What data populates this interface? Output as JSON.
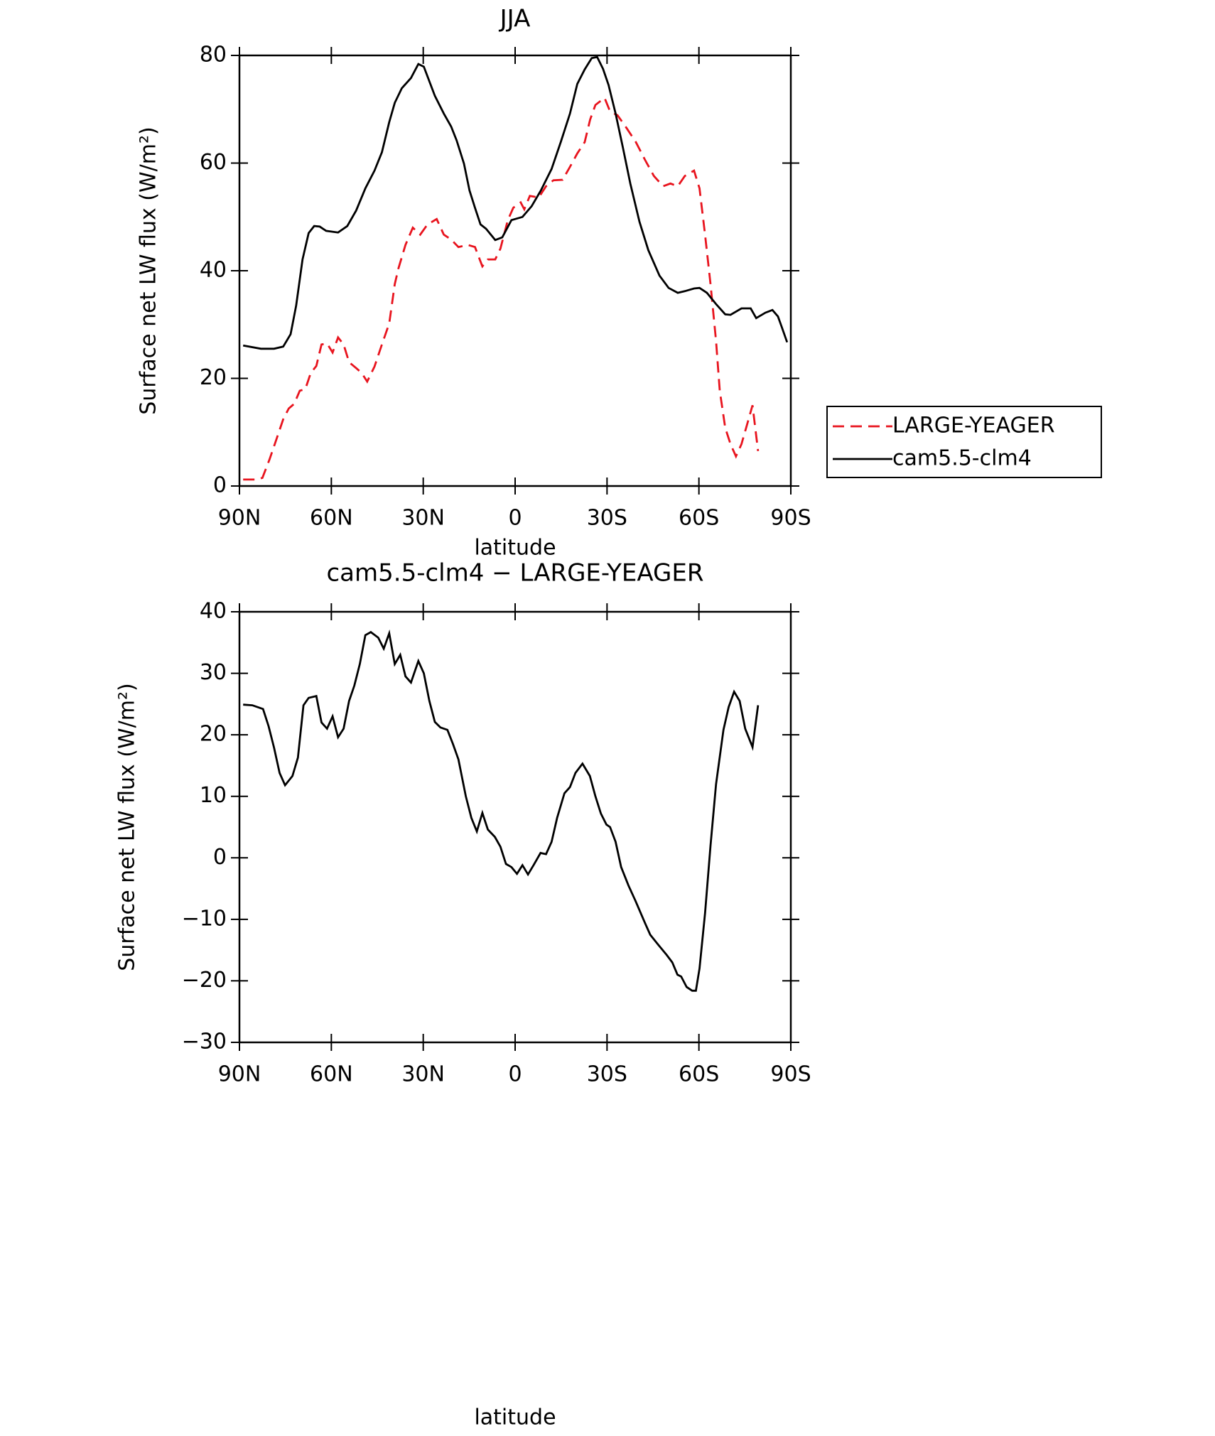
{
  "chart_data": [
    {
      "type": "line",
      "title": "JJA",
      "xlabel": "latitude",
      "ylabel": "Surface net LW flux (W/m²)",
      "xlim": [
        90,
        -90
      ],
      "xticks": [
        {
          "value": 90,
          "label": "90N"
        },
        {
          "value": 60,
          "label": "60N"
        },
        {
          "value": 30,
          "label": "30N"
        },
        0,
        {
          "value": -30,
          "label": "30S"
        },
        {
          "value": -60,
          "label": "60S"
        },
        {
          "value": -90,
          "label": "90S"
        }
      ],
      "ylim": [
        0,
        80
      ],
      "yticks": [
        0,
        20,
        40,
        60,
        80
      ],
      "legend": "right",
      "series": [
        {
          "name": "LARGE-YEAGER",
          "color": "#e8141e",
          "dash": true,
          "x": [
            88.8,
            84.6,
            82.5,
            80.2,
            78.1,
            75.7,
            73.9,
            72.1,
            70.3,
            68.5,
            66.7,
            64.9,
            63.2,
            61.4,
            59.6,
            57.8,
            56,
            54.2,
            51.9,
            50.1,
            48.3,
            45.9,
            43.5,
            41.1,
            39.3,
            38.1,
            35.8,
            33.4,
            31,
            28.6,
            25.6,
            23.3,
            20.9,
            18.5,
            15.5,
            13.1,
            10.7,
            8.9,
            6.5,
            4.8,
            2.4,
            0.6,
            -1.8,
            -3,
            -4.8,
            -7.7,
            -10.1,
            -12.5,
            -15.5,
            -17.9,
            -20.3,
            -22.7,
            -24.5,
            -26.2,
            -29.2,
            -31,
            -33.4,
            -36.4,
            -39.4,
            -42.4,
            -45.3,
            -48.3,
            -50.7,
            -53.1,
            -55.4,
            -58.4,
            -60.2,
            -62,
            -63.8,
            -65.6,
            -66.8,
            -68.6,
            -70.3,
            -72.1,
            -73.9,
            -75.7,
            -77.5,
            -79.3
          ],
          "values": [
            1.2,
            1.2,
            1.5,
            4.9,
            8.4,
            12.4,
            14.4,
            15.3,
            17.7,
            18,
            21,
            22.3,
            26.3,
            26.5,
            24.8,
            27.6,
            26.3,
            23,
            21.9,
            21,
            19.4,
            22.2,
            26.3,
            30.2,
            37.5,
            40.4,
            44.8,
            48,
            46.7,
            48.6,
            49.6,
            46.7,
            45.8,
            44.4,
            44.8,
            44.4,
            40.8,
            42.1,
            42.1,
            44.1,
            49.4,
            51.7,
            52.7,
            51.4,
            53.9,
            53.6,
            55.7,
            56.8,
            56.9,
            59.3,
            61.8,
            63.9,
            68.1,
            70.8,
            72.1,
            69.6,
            68.9,
            66.5,
            63.9,
            60.6,
            57.6,
            55.7,
            56.2,
            55.7,
            57.6,
            58.6,
            55.3,
            46.7,
            37.5,
            26.9,
            17.7,
            10.8,
            7.8,
            5.5,
            7.8,
            11.4,
            15,
            6.5
          ]
        },
        {
          "name": "cam5.5-clm4",
          "color": "#000000",
          "dash": false,
          "x": [
            88.8,
            83,
            78.7,
            75.7,
            73.3,
            71.5,
            69.4,
            67.4,
            65.6,
            63.8,
            61.7,
            57.8,
            54.8,
            51.9,
            48.9,
            45.9,
            43.5,
            41.1,
            39.3,
            37,
            34,
            31.6,
            29.8,
            26.2,
            23.3,
            20.9,
            19.1,
            16.7,
            14.9,
            13.1,
            11.3,
            9.5,
            6.5,
            4.2,
            1.2,
            -2.4,
            -5.4,
            -8.4,
            -11.9,
            -14.9,
            -17.9,
            -20.3,
            -22.7,
            -25,
            -26.8,
            -28.7,
            -30.5,
            -32.8,
            -35.2,
            -37.6,
            -40.6,
            -43.5,
            -47.1,
            -50.1,
            -53.1,
            -55.4,
            -58.4,
            -60.2,
            -62.6,
            -65.6,
            -68.6,
            -70.3,
            -73.9,
            -76.9,
            -78.7,
            -81.7,
            -84,
            -85.8,
            -87,
            -88.8
          ],
          "values": [
            26.1,
            25.5,
            25.5,
            25.9,
            28.2,
            33.5,
            42.1,
            47,
            48.3,
            48.2,
            47.4,
            47.1,
            48.3,
            51.2,
            55.3,
            58.6,
            62,
            67.6,
            71.2,
            73.9,
            75.8,
            78.4,
            77.9,
            72.5,
            69.2,
            66.8,
            64.2,
            59.9,
            54.9,
            51.7,
            48.6,
            47.8,
            45.7,
            46.2,
            49.4,
            50,
            52,
            54.9,
            58.9,
            63.9,
            69.2,
            74.7,
            77.4,
            79.5,
            79.7,
            77.5,
            74.5,
            69.2,
            62.8,
            56.2,
            49.1,
            43.8,
            39.1,
            36.8,
            35.9,
            36.2,
            36.7,
            36.8,
            35.9,
            33.8,
            31.9,
            31.8,
            33,
            33,
            31.2,
            32.2,
            32.7,
            31.5,
            29.6,
            26.7
          ]
        }
      ]
    },
    {
      "type": "line",
      "title": "cam5.5-clm4 − LARGE-YEAGER",
      "xlabel": "latitude",
      "ylabel": "Surface net LW flux (W/m²)",
      "xlim": [
        90,
        -90
      ],
      "xticks": [
        {
          "value": 90,
          "label": "90N"
        },
        {
          "value": 60,
          "label": "60N"
        },
        {
          "value": 30,
          "label": "30N"
        },
        0,
        {
          "value": -30,
          "label": "30S"
        },
        {
          "value": -60,
          "label": "60S"
        },
        {
          "value": -90,
          "label": "90S"
        }
      ],
      "ylim": [
        -30,
        40
      ],
      "yticks": [
        {
          "value": -30,
          "label": "−30"
        },
        {
          "value": -20,
          "label": "−20"
        },
        {
          "value": -10,
          "label": "−10"
        },
        0,
        10,
        20,
        30,
        40
      ],
      "series": [
        {
          "color": "#000000",
          "dash": false,
          "x": [
            88.8,
            85.8,
            82.3,
            80.5,
            78.7,
            76.9,
            75.1,
            72.7,
            70.9,
            69.1,
            67.4,
            64.9,
            63.2,
            61.4,
            59.6,
            57.8,
            56,
            54.2,
            52.5,
            50.7,
            48.9,
            47.1,
            44.7,
            42.9,
            41.1,
            39.3,
            37.5,
            35.8,
            34,
            31.6,
            29.8,
            28,
            26.2,
            24.4,
            22.1,
            20.3,
            18.5,
            16.1,
            14.3,
            12.5,
            10.7,
            8.9,
            6.6,
            4.8,
            3,
            1.2,
            -0.6,
            -2.4,
            -4.2,
            -6,
            -8.3,
            -10.1,
            -11.9,
            -13.7,
            -16.1,
            -17.9,
            -19.7,
            -22,
            -24.4,
            -26.2,
            -28,
            -29.8,
            -31,
            -32.8,
            -34.6,
            -37,
            -39.3,
            -42.3,
            -44.1,
            -46.5,
            -49.5,
            -51.3,
            -53,
            -54.2,
            -56,
            -57.8,
            -59,
            -60.2,
            -62,
            -63.8,
            -65.6,
            -68,
            -69.7,
            -71.5,
            -73.3,
            -75.1,
            -77.5,
            -79.3
          ],
          "values": [
            24.9,
            24.8,
            24.2,
            21.4,
            17.9,
            13.8,
            11.8,
            13.3,
            16.3,
            24.8,
            26,
            26.3,
            22,
            21,
            23,
            19.6,
            21,
            25.5,
            28,
            31.5,
            36.2,
            36.7,
            35.8,
            34,
            36.5,
            31.5,
            33,
            29.5,
            28.5,
            32,
            30,
            25.5,
            22.1,
            21.2,
            20.8,
            18.5,
            16,
            10,
            6.5,
            4.3,
            7.3,
            4.6,
            3.4,
            1.8,
            -1,
            -1.5,
            -2.6,
            -1.2,
            -2.7,
            -1.2,
            0.8,
            0.6,
            2.6,
            6.5,
            10.5,
            11.5,
            13.8,
            15.3,
            13.3,
            10,
            7.2,
            5.4,
            5,
            2.6,
            -1.5,
            -4.5,
            -7,
            -10.5,
            -12.5,
            -14,
            -15.8,
            -17,
            -19,
            -19.3,
            -21,
            -21.6,
            -21.6,
            -18,
            -9,
            2,
            12,
            20.8,
            24.5,
            27,
            25.5,
            21,
            18,
            24.8
          ]
        }
      ]
    }
  ]
}
